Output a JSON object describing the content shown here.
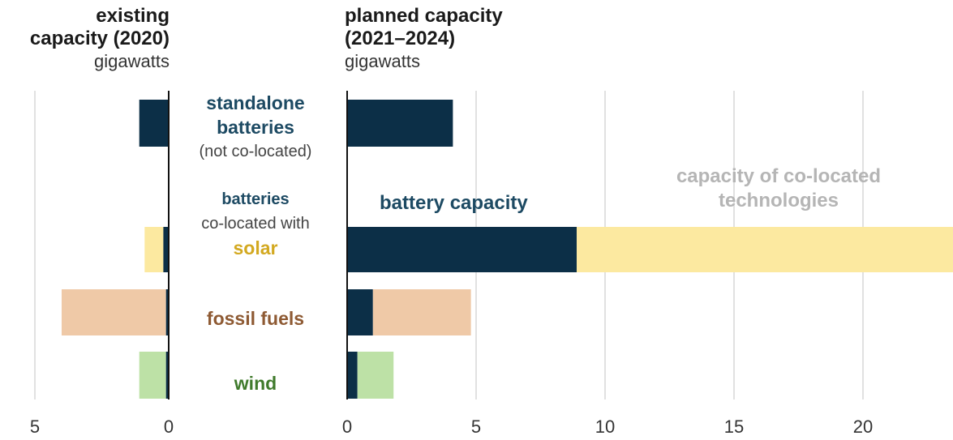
{
  "chart_data": [
    {
      "type": "bar",
      "orientation": "horizontal",
      "title": "existing capacity (2020)",
      "unit": "gigawatts",
      "x_reversed": true,
      "xlim": [
        0,
        5
      ],
      "xticks": [
        "5",
        "0"
      ],
      "categories": [
        "standalone batteries",
        "batteries co-located with solar",
        "fossil fuels",
        "wind"
      ],
      "stacked": true,
      "series": [
        {
          "name": "battery capacity",
          "values": [
            1.1,
            0.2,
            0.1,
            0.1
          ]
        },
        {
          "name": "capacity of co-located technologies",
          "values": [
            0,
            0.7,
            3.9,
            1.0
          ]
        }
      ],
      "grid": true
    },
    {
      "type": "bar",
      "orientation": "horizontal",
      "title": "planned capacity (2021–2024)",
      "unit": "gigawatts",
      "xlim": [
        0,
        23.5
      ],
      "xticks": [
        "0",
        "5",
        "10",
        "15",
        "20"
      ],
      "categories": [
        "standalone batteries",
        "batteries co-located with solar",
        "fossil fuels",
        "wind"
      ],
      "stacked": true,
      "series": [
        {
          "name": "battery capacity",
          "values": [
            4.1,
            8.9,
            1.0,
            0.4
          ]
        },
        {
          "name": "capacity of co-located technologies",
          "values": [
            0,
            14.6,
            3.8,
            1.4
          ]
        }
      ],
      "grid": true
    }
  ],
  "headers": {
    "left_line1": "existing",
    "left_line2": "capacity (2020)",
    "left_unit": "gigawatts",
    "right_line1": "planned capacity",
    "right_line2": "(2021–2024)",
    "right_unit": "gigawatts"
  },
  "labels": {
    "standalone_line1": "standalone",
    "standalone_line2": "batteries",
    "standalone_sub": "(not co-located)",
    "solar_line1": "batteries",
    "solar_line2": "co-located with",
    "solar_line3": "solar",
    "fossil": "fossil fuels",
    "wind": "wind"
  },
  "annotations": {
    "battery": "battery capacity",
    "colocated_line1": "capacity of co-located",
    "colocated_line2": "technologies"
  },
  "colors": {
    "battery": "#0c2f47",
    "solar": "#fce9a0",
    "fossil": "#efc9a7",
    "wind": "#bde1a6",
    "grid": "#d7d7d7",
    "axis": "#111111",
    "teal_label": "#1d4a63",
    "solar_label": "#d3a921",
    "fossil_label": "#8e5a33",
    "wind_label": "#3f7a2b",
    "annot_gray": "#b5b5b5"
  }
}
